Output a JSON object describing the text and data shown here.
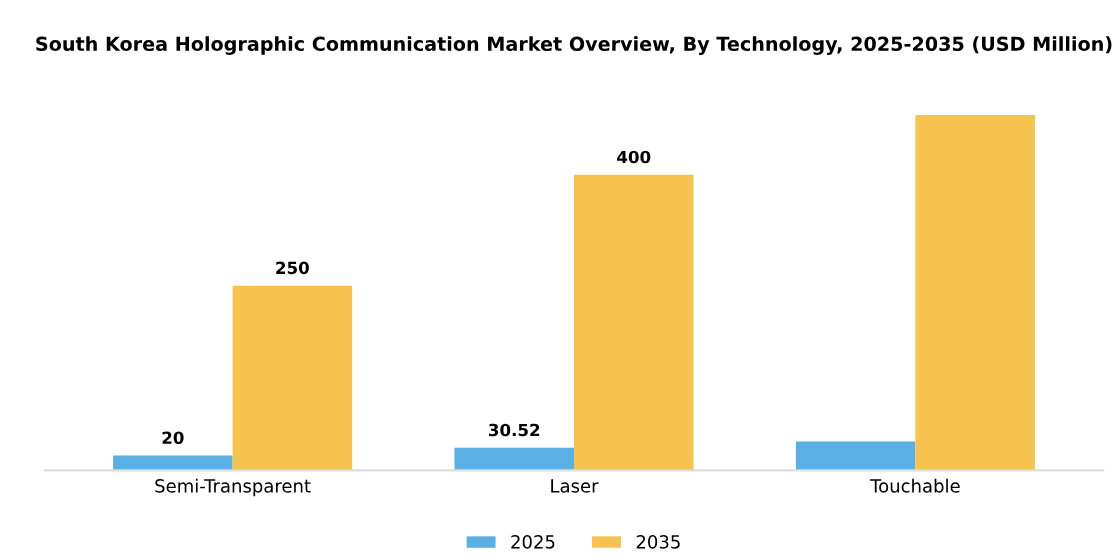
{
  "chart_data": {
    "type": "bar",
    "title": "South Korea Holographic Communication Market Overview, By Technology, 2025-2035 (USD Million)",
    "categories": [
      "Semi-Transparent",
      "Laser",
      "Touchable"
    ],
    "series": [
      {
        "name": "2025",
        "color": "#5ab0e4",
        "values": [
          20,
          30.52,
          39
        ],
        "value_labels": [
          "20",
          "30.52",
          null
        ]
      },
      {
        "name": "2035",
        "color": "#f6c34e",
        "values": [
          250,
          400,
          481
        ],
        "value_labels": [
          "250",
          "400",
          null
        ]
      }
    ],
    "legend": "bottom",
    "grid": false
  }
}
